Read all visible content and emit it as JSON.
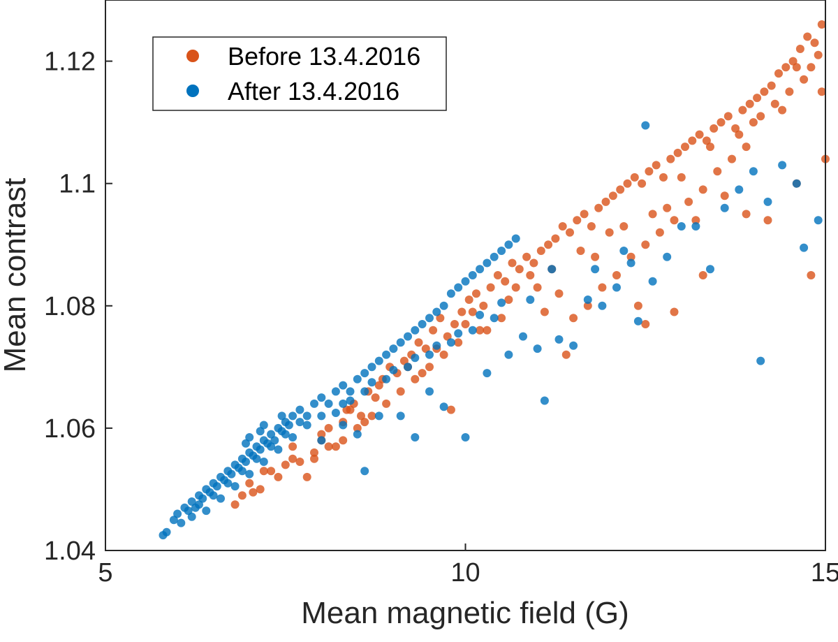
{
  "chart_data": {
    "type": "scatter",
    "title": "",
    "xlabel": "Mean magnetic field (G)",
    "ylabel": "Mean contrast",
    "xlim": [
      5,
      15
    ],
    "ylim": [
      1.04,
      1.13
    ],
    "xticks": [
      5,
      10,
      15
    ],
    "xtick_labels": [
      "5",
      "10",
      "15"
    ],
    "yticks": [
      1.04,
      1.06,
      1.08,
      1.1,
      1.12
    ],
    "ytick_labels": [
      "1.04",
      "1.06",
      "1.08",
      "1.1",
      "1.12"
    ],
    "grid": false,
    "legend_position": "top-left",
    "series": [
      {
        "name": "Before 13.4.2016",
        "color": "#D95319",
        "points": [
          [
            6.8,
            1.0475
          ],
          [
            6.9,
            1.049
          ],
          [
            7.05,
            1.0495
          ],
          [
            7.15,
            1.05
          ],
          [
            7.0,
            1.051
          ],
          [
            7.3,
            1.053
          ],
          [
            7.4,
            1.052
          ],
          [
            7.5,
            1.054
          ],
          [
            7.6,
            1.055
          ],
          [
            7.7,
            1.0545
          ],
          [
            7.9,
            1.056
          ],
          [
            8.0,
            1.058
          ],
          [
            8.1,
            1.06
          ],
          [
            8.2,
            1.057
          ],
          [
            8.3,
            1.061
          ],
          [
            8.35,
            1.063
          ],
          [
            8.45,
            1.064
          ],
          [
            8.55,
            1.062
          ],
          [
            8.65,
            1.066
          ],
          [
            8.75,
            1.065
          ],
          [
            8.85,
            1.068
          ],
          [
            8.95,
            1.07
          ],
          [
            9.05,
            1.069
          ],
          [
            9.15,
            1.071
          ],
          [
            9.25,
            1.072
          ],
          [
            9.35,
            1.074
          ],
          [
            9.45,
            1.073
          ],
          [
            9.55,
            1.076
          ],
          [
            9.65,
            1.078
          ],
          [
            9.75,
            1.075
          ],
          [
            9.85,
            1.077
          ],
          [
            9.95,
            1.079
          ],
          [
            10.05,
            1.081
          ],
          [
            10.15,
            1.082
          ],
          [
            10.25,
            1.08
          ],
          [
            10.35,
            1.083
          ],
          [
            10.45,
            1.085
          ],
          [
            10.55,
            1.084
          ],
          [
            10.65,
            1.087
          ],
          [
            10.75,
            1.086
          ],
          [
            10.85,
            1.088
          ],
          [
            10.95,
            1.087
          ],
          [
            11.05,
            1.089
          ],
          [
            11.15,
            1.09
          ],
          [
            11.25,
            1.091
          ],
          [
            11.35,
            1.093
          ],
          [
            11.45,
            1.092
          ],
          [
            11.55,
            1.094
          ],
          [
            11.65,
            1.095
          ],
          [
            11.75,
            1.093
          ],
          [
            11.85,
            1.096
          ],
          [
            11.95,
            1.097
          ],
          [
            12.05,
            1.098
          ],
          [
            12.15,
            1.099
          ],
          [
            12.25,
            1.1
          ],
          [
            12.35,
            1.101
          ],
          [
            12.45,
            1.1
          ],
          [
            12.55,
            1.102
          ],
          [
            12.65,
            1.103
          ],
          [
            12.75,
            1.101
          ],
          [
            12.85,
            1.104
          ],
          [
            12.95,
            1.105
          ],
          [
            13.05,
            1.106
          ],
          [
            13.15,
            1.107
          ],
          [
            13.25,
            1.108
          ],
          [
            13.35,
            1.107
          ],
          [
            13.45,
            1.109
          ],
          [
            13.55,
            1.11
          ],
          [
            13.65,
            1.111
          ],
          [
            13.75,
            1.109
          ],
          [
            13.85,
            1.112
          ],
          [
            13.95,
            1.113
          ],
          [
            14.05,
            1.114
          ],
          [
            14.15,
            1.115
          ],
          [
            14.25,
            1.116
          ],
          [
            14.35,
            1.118
          ],
          [
            14.45,
            1.119
          ],
          [
            14.55,
            1.12
          ],
          [
            14.65,
            1.122
          ],
          [
            14.75,
            1.124
          ],
          [
            14.85,
            1.123
          ],
          [
            14.95,
            1.126
          ],
          [
            14.9,
            1.121
          ],
          [
            14.7,
            1.117
          ],
          [
            14.5,
            1.115
          ],
          [
            14.3,
            1.113
          ],
          [
            14.1,
            1.111
          ],
          [
            13.9,
            1.106
          ],
          [
            13.7,
            1.104
          ],
          [
            13.5,
            1.102
          ],
          [
            13.3,
            1.099
          ],
          [
            13.1,
            1.097
          ],
          [
            12.9,
            1.094
          ],
          [
            12.7,
            1.092
          ],
          [
            12.5,
            1.09
          ],
          [
            12.3,
            1.088
          ],
          [
            12.1,
            1.085
          ],
          [
            11.9,
            1.083
          ],
          [
            11.7,
            1.08
          ],
          [
            11.5,
            1.078
          ],
          [
            11.3,
            1.082
          ],
          [
            11.1,
            1.079
          ],
          [
            10.9,
            1.085
          ],
          [
            10.7,
            1.083
          ],
          [
            10.5,
            1.078
          ],
          [
            10.3,
            1.076
          ],
          [
            10.1,
            1.079
          ],
          [
            9.9,
            1.074
          ],
          [
            9.7,
            1.072
          ],
          [
            9.5,
            1.07
          ],
          [
            9.3,
            1.068
          ],
          [
            9.1,
            1.066
          ],
          [
            8.9,
            1.064
          ],
          [
            8.7,
            1.062
          ],
          [
            8.5,
            1.06
          ],
          [
            8.3,
            1.058
          ],
          [
            8.1,
            1.057
          ],
          [
            7.9,
            1.055
          ],
          [
            9.8,
            1.063
          ],
          [
            11.4,
            1.072
          ],
          [
            12.4,
            1.08
          ],
          [
            12.5,
            1.077
          ],
          [
            12.9,
            1.079
          ],
          [
            13.3,
            1.085
          ],
          [
            13.9,
            1.095
          ],
          [
            14.2,
            1.094
          ],
          [
            14.6,
            1.1
          ],
          [
            14.8,
            1.085
          ],
          [
            15.0,
            1.104
          ],
          [
            14.95,
            1.115
          ],
          [
            13.6,
            1.098
          ],
          [
            13.2,
            1.094
          ],
          [
            12.8,
            1.096
          ],
          [
            12.2,
            1.093
          ],
          [
            11.8,
            1.088
          ],
          [
            11.2,
            1.086
          ],
          [
            10.6,
            1.081
          ],
          [
            10.0,
            1.077
          ],
          [
            9.6,
            1.073
          ],
          [
            9.2,
            1.07
          ],
          [
            8.8,
            1.067
          ],
          [
            8.4,
            1.063
          ],
          [
            8.0,
            1.059
          ],
          [
            7.6,
            1.057
          ],
          [
            7.2,
            1.053
          ],
          [
            7.8,
            1.052
          ],
          [
            8.6,
            1.061
          ],
          [
            9.4,
            1.069
          ],
          [
            10.2,
            1.076
          ],
          [
            11.0,
            1.083
          ],
          [
            11.6,
            1.089
          ],
          [
            12.0,
            1.092
          ],
          [
            12.6,
            1.095
          ],
          [
            13.0,
            1.101
          ],
          [
            13.4,
            1.106
          ],
          [
            13.8,
            1.108
          ],
          [
            14.0,
            1.11
          ],
          [
            14.4,
            1.112
          ],
          [
            14.6,
            1.119
          ],
          [
            14.8,
            1.119
          ]
        ]
      },
      {
        "name": "After 13.4.2016",
        "color": "#0072BD",
        "points": [
          [
            5.8,
            1.0425
          ],
          [
            5.85,
            1.043
          ],
          [
            5.95,
            1.045
          ],
          [
            6.0,
            1.046
          ],
          [
            6.05,
            1.0445
          ],
          [
            6.1,
            1.047
          ],
          [
            6.15,
            1.0465
          ],
          [
            6.2,
            1.048
          ],
          [
            6.25,
            1.047
          ],
          [
            6.3,
            1.049
          ],
          [
            6.35,
            1.0485
          ],
          [
            6.4,
            1.05
          ],
          [
            6.45,
            1.0495
          ],
          [
            6.5,
            1.051
          ],
          [
            6.55,
            1.0505
          ],
          [
            6.6,
            1.052
          ],
          [
            6.65,
            1.0515
          ],
          [
            6.7,
            1.053
          ],
          [
            6.75,
            1.0525
          ],
          [
            6.8,
            1.054
          ],
          [
            6.85,
            1.0535
          ],
          [
            6.9,
            1.055
          ],
          [
            6.95,
            1.0545
          ],
          [
            7.0,
            1.056
          ],
          [
            7.05,
            1.0555
          ],
          [
            7.1,
            1.057
          ],
          [
            7.15,
            1.0565
          ],
          [
            7.2,
            1.058
          ],
          [
            7.25,
            1.0575
          ],
          [
            7.3,
            1.059
          ],
          [
            7.35,
            1.058
          ],
          [
            7.4,
            1.06
          ],
          [
            7.45,
            1.0595
          ],
          [
            7.5,
            1.061
          ],
          [
            7.55,
            1.0605
          ],
          [
            7.6,
            1.062
          ],
          [
            7.7,
            1.063
          ],
          [
            7.8,
            1.062
          ],
          [
            7.9,
            1.064
          ],
          [
            8.0,
            1.065
          ],
          [
            8.1,
            1.064
          ],
          [
            8.2,
            1.066
          ],
          [
            8.3,
            1.067
          ],
          [
            8.4,
            1.066
          ],
          [
            8.5,
            1.068
          ],
          [
            8.6,
            1.069
          ],
          [
            8.7,
            1.07
          ],
          [
            8.8,
            1.071
          ],
          [
            8.9,
            1.072
          ],
          [
            9.0,
            1.073
          ],
          [
            9.1,
            1.074
          ],
          [
            9.2,
            1.075
          ],
          [
            9.3,
            1.076
          ],
          [
            9.4,
            1.077
          ],
          [
            9.5,
            1.078
          ],
          [
            9.6,
            1.079
          ],
          [
            9.7,
            1.08
          ],
          [
            9.8,
            1.082
          ],
          [
            9.9,
            1.083
          ],
          [
            10.0,
            1.084
          ],
          [
            10.1,
            1.085
          ],
          [
            10.2,
            1.086
          ],
          [
            10.3,
            1.087
          ],
          [
            10.4,
            1.088
          ],
          [
            10.5,
            1.089
          ],
          [
            10.6,
            1.09
          ],
          [
            10.7,
            1.091
          ],
          [
            6.3,
            1.0475
          ],
          [
            6.5,
            1.049
          ],
          [
            6.7,
            1.051
          ],
          [
            6.9,
            1.053
          ],
          [
            7.1,
            1.055
          ],
          [
            7.3,
            1.057
          ],
          [
            7.5,
            1.059
          ],
          [
            7.7,
            1.061
          ],
          [
            8.0,
            1.062
          ],
          [
            8.3,
            1.064
          ],
          [
            8.6,
            1.066
          ],
          [
            8.9,
            1.068
          ],
          [
            9.2,
            1.07
          ],
          [
            9.5,
            1.072
          ],
          [
            9.8,
            1.074
          ],
          [
            10.1,
            1.076
          ],
          [
            10.4,
            1.078
          ],
          [
            8.0,
            1.058
          ],
          [
            8.3,
            1.0605
          ],
          [
            8.5,
            1.059
          ],
          [
            8.8,
            1.062
          ],
          [
            9.1,
            1.062
          ],
          [
            9.3,
            1.0585
          ],
          [
            9.5,
            1.066
          ],
          [
            9.7,
            1.0635
          ],
          [
            10.0,
            1.0585
          ],
          [
            10.3,
            1.069
          ],
          [
            10.6,
            1.072
          ],
          [
            8.6,
            1.053
          ],
          [
            10.8,
            1.075
          ],
          [
            11.0,
            1.073
          ],
          [
            11.1,
            1.0645
          ],
          [
            11.3,
            1.0745
          ],
          [
            11.5,
            1.0735
          ],
          [
            11.7,
            1.081
          ],
          [
            11.9,
            1.08
          ],
          [
            12.1,
            1.083
          ],
          [
            12.3,
            1.087
          ],
          [
            12.4,
            1.0775
          ],
          [
            12.6,
            1.084
          ],
          [
            12.8,
            1.088
          ],
          [
            13.0,
            1.093
          ],
          [
            13.2,
            1.093
          ],
          [
            13.4,
            1.086
          ],
          [
            13.6,
            1.096
          ],
          [
            13.8,
            1.099
          ],
          [
            14.0,
            1.102
          ],
          [
            14.2,
            1.097
          ],
          [
            14.4,
            1.103
          ],
          [
            14.6,
            1.1
          ],
          [
            14.7,
            1.0895
          ],
          [
            14.9,
            1.094
          ],
          [
            14.1,
            1.071
          ],
          [
            12.5,
            1.1095
          ],
          [
            11.2,
            1.086
          ],
          [
            11.8,
            1.086
          ],
          [
            12.2,
            1.089
          ],
          [
            10.9,
            1.081
          ],
          [
            6.2,
            1.0455
          ],
          [
            6.4,
            1.0465
          ],
          [
            6.6,
            1.0485
          ],
          [
            6.8,
            1.0505
          ],
          [
            7.0,
            1.0525
          ],
          [
            7.2,
            1.0545
          ],
          [
            7.4,
            1.0565
          ],
          [
            7.6,
            1.0585
          ],
          [
            7.8,
            1.0605
          ],
          [
            8.2,
            1.0625
          ],
          [
            8.4,
            1.0645
          ],
          [
            8.7,
            1.0675
          ],
          [
            9.0,
            1.0695
          ],
          [
            9.3,
            1.0715
          ],
          [
            9.6,
            1.0735
          ],
          [
            9.9,
            1.0755
          ],
          [
            10.2,
            1.0785
          ],
          [
            10.5,
            1.0805
          ],
          [
            7.0,
            1.0585
          ],
          [
            7.2,
            1.0605
          ],
          [
            7.45,
            1.062
          ],
          [
            6.95,
            1.0575
          ],
          [
            7.15,
            1.0595
          ]
        ]
      }
    ]
  }
}
